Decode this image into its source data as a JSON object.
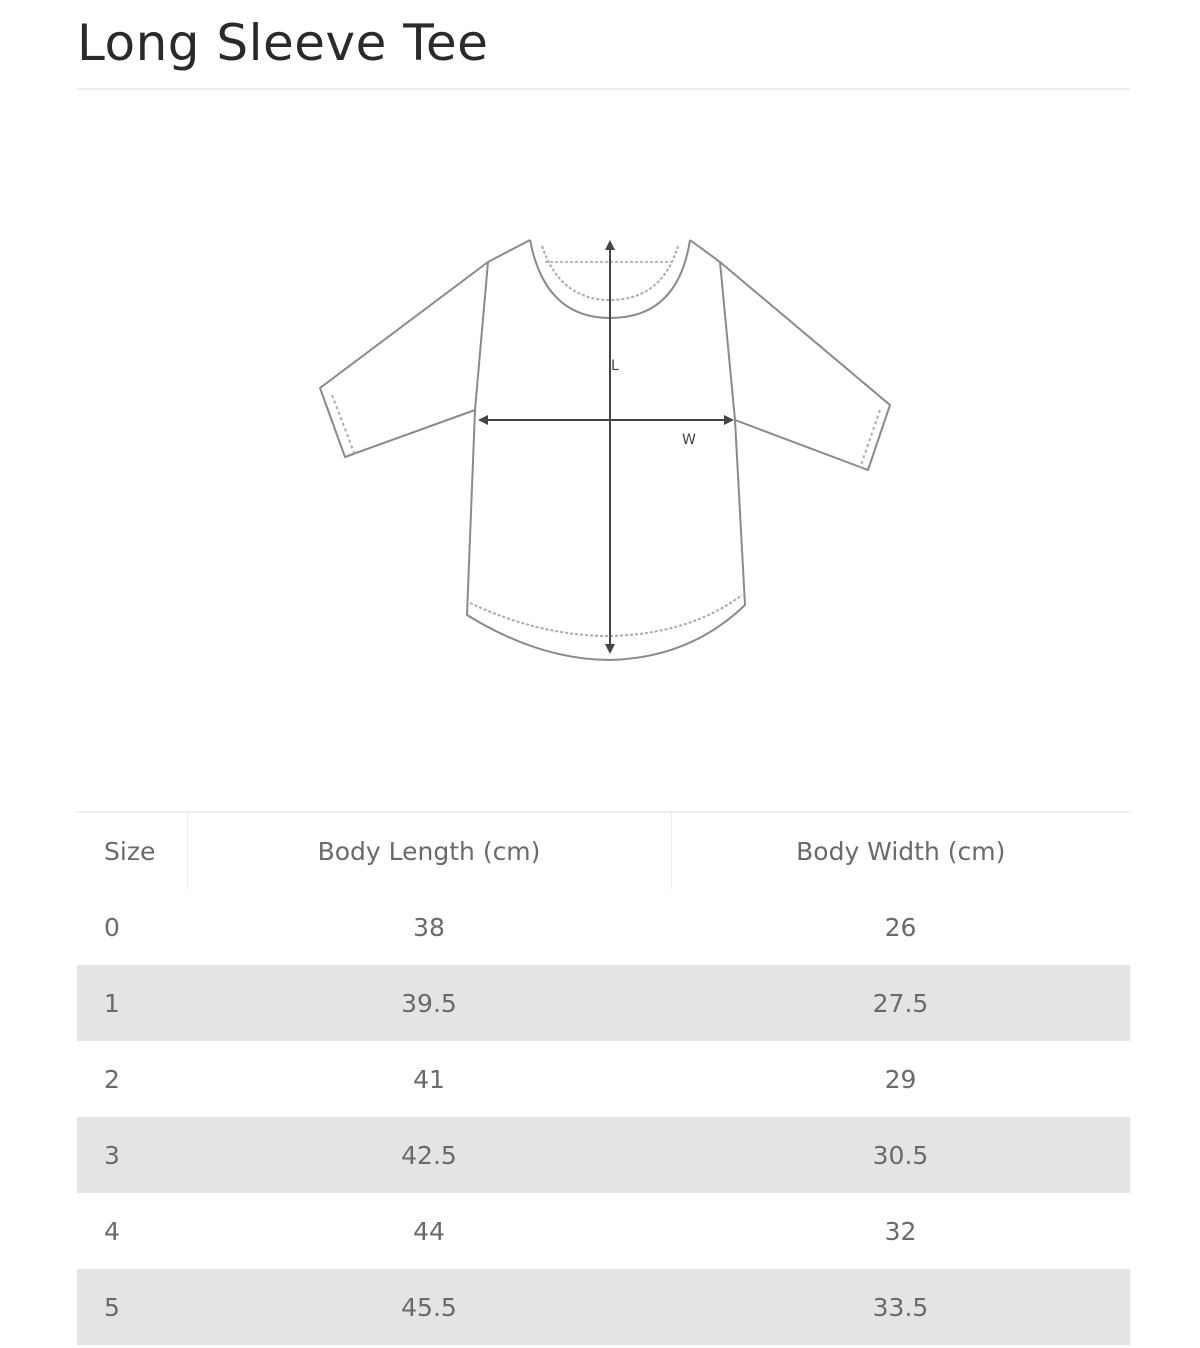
{
  "title": "Long Sleeve Tee",
  "diagram": {
    "length_label": "L",
    "width_label": "W"
  },
  "table": {
    "headers": [
      "Size",
      "Body Length (cm)",
      "Body Width (cm)"
    ],
    "rows": [
      [
        "0",
        "38",
        "26"
      ],
      [
        "1",
        "39.5",
        "27.5"
      ],
      [
        "2",
        "41",
        "29"
      ],
      [
        "3",
        "42.5",
        "30.5"
      ],
      [
        "4",
        "44",
        "32"
      ],
      [
        "5",
        "45.5",
        "33.5"
      ]
    ]
  }
}
